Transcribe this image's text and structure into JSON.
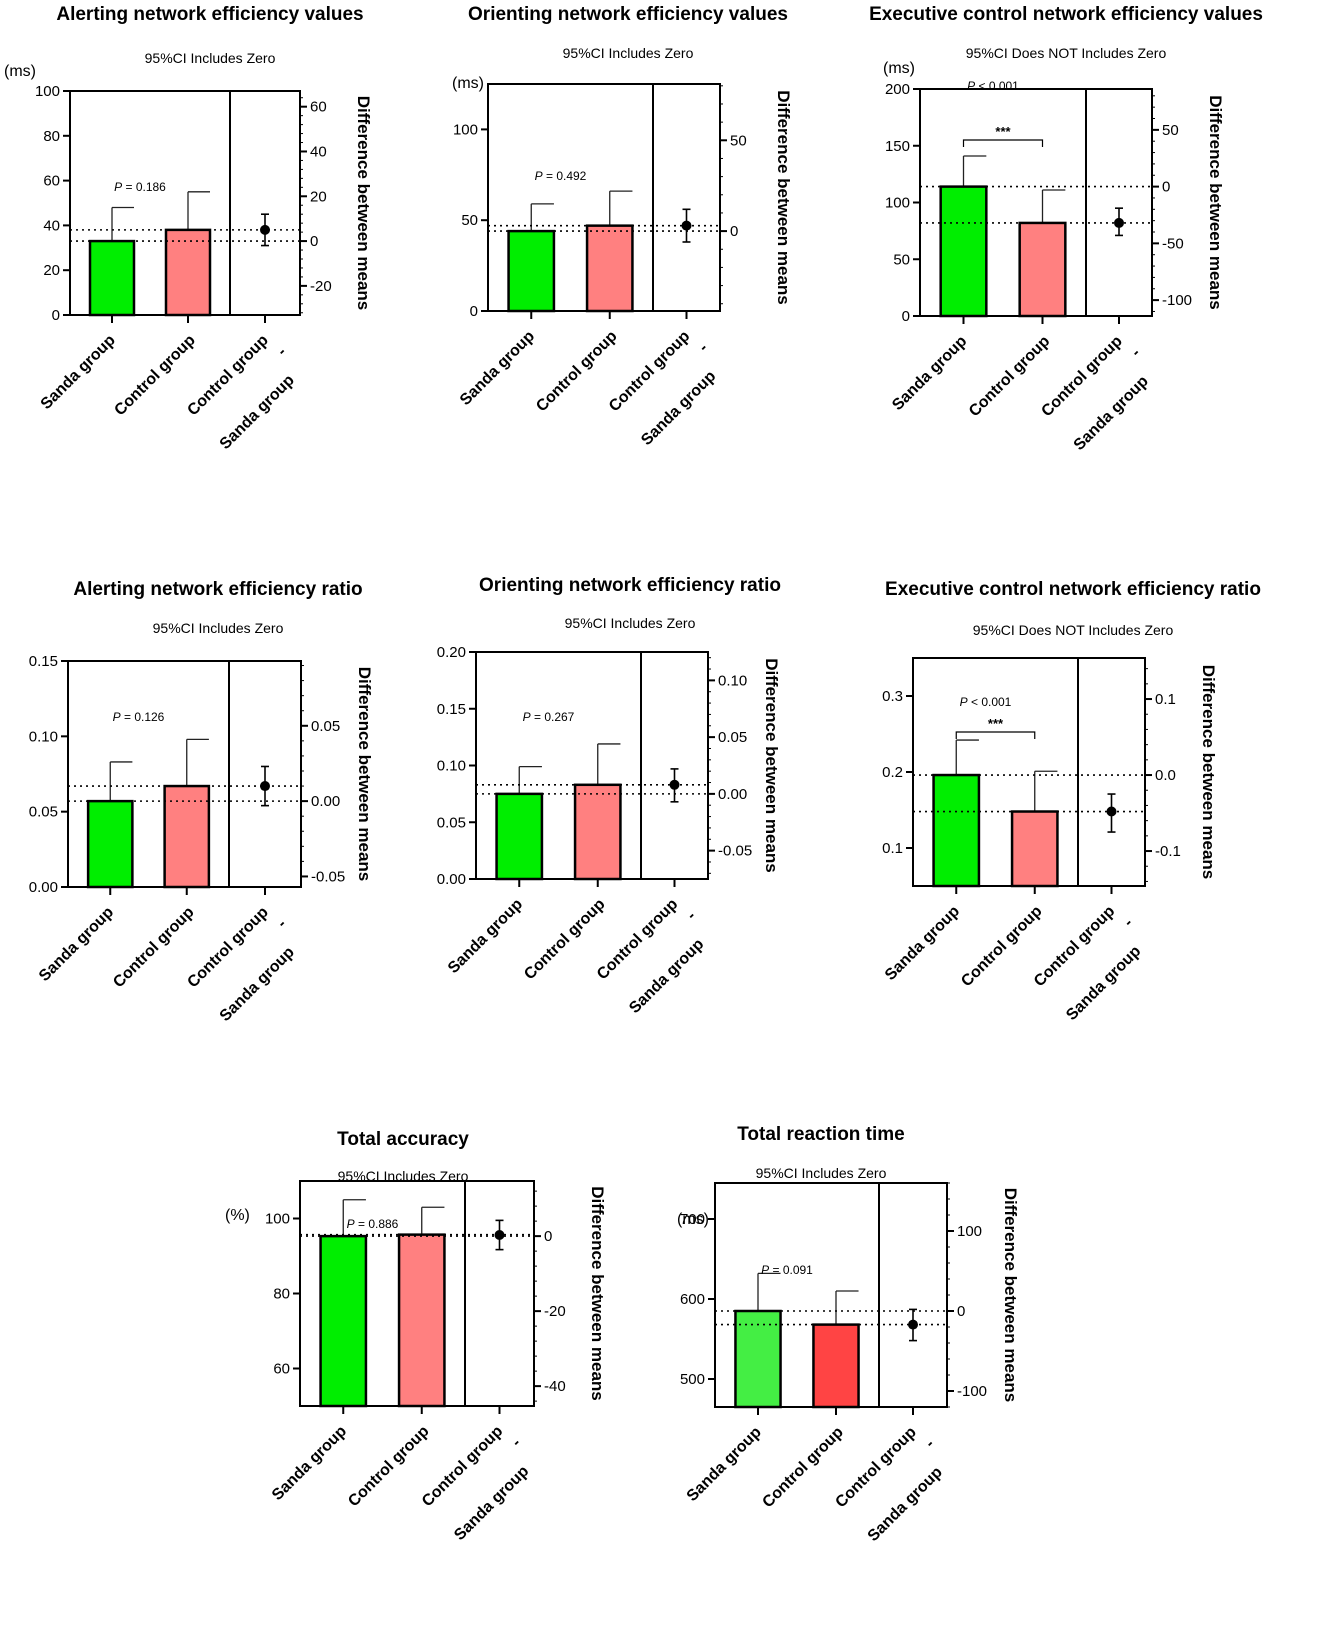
{
  "colors": {
    "sanda": "#00ee00",
    "control": "#ff8080",
    "sanda_rt": "#44ee44",
    "control_rt": "#ff4444",
    "axis": "#000000"
  },
  "chart_data": [
    {
      "type": "bar",
      "title": "Alerting network efficiency values",
      "subtitle": "95%CI Includes Zero",
      "unit": "(ms)",
      "categories": [
        "Sanda group",
        "Control group"
      ],
      "diff_label": [
        "Control group",
        "-",
        "Sanda group"
      ],
      "values": [
        33,
        38
      ],
      "errors_upper": [
        48,
        55
      ],
      "ylim": [
        0,
        100
      ],
      "yticks": [
        0,
        20,
        40,
        60,
        80,
        100
      ],
      "ytick_labels": [
        "0",
        "20",
        "40",
        "60",
        "80",
        "100"
      ],
      "right_ylabel": "Difference between means",
      "right_ticks": [
        -20,
        0,
        20,
        40,
        60
      ],
      "right_tick_labels": [
        "-20",
        "0",
        "20",
        "40",
        "60"
      ],
      "difference": {
        "mean": 5,
        "ci": [
          -2,
          12
        ]
      },
      "p_value": "= 0.186",
      "p_prefix": "P",
      "significance": ""
    },
    {
      "type": "bar",
      "title": "Orienting network efficiency values",
      "subtitle": "95%CI Includes Zero",
      "unit": "(ms)",
      "categories": [
        "Sanda group",
        "Control group"
      ],
      "diff_label": [
        "Control group",
        "-",
        "Sanda group"
      ],
      "values": [
        44,
        47
      ],
      "errors_upper": [
        59,
        66
      ],
      "ylim": [
        0,
        125
      ],
      "yticks": [
        0,
        50,
        100
      ],
      "ytick_labels": [
        "0",
        "50",
        "100"
      ],
      "right_ylabel": "Difference between means",
      "right_ticks": [
        0,
        50
      ],
      "right_tick_labels": [
        "0",
        "50"
      ],
      "difference": {
        "mean": 3,
        "ci": [
          -6,
          12
        ]
      },
      "p_value": "= 0.492",
      "p_prefix": "P",
      "significance": ""
    },
    {
      "type": "bar",
      "title": "Executive control network efficiency values",
      "subtitle": "95%CI Does NOT Includes Zero",
      "unit": "(ms)",
      "categories": [
        "Sanda group",
        "Control group"
      ],
      "diff_label": [
        "Control group",
        "-",
        "Sanda group"
      ],
      "values": [
        114,
        82
      ],
      "errors_upper": [
        141,
        111
      ],
      "ylim": [
        0,
        200
      ],
      "yticks": [
        0,
        50,
        100,
        150,
        200
      ],
      "ytick_labels": [
        "0",
        "50",
        "100",
        "150",
        "200"
      ],
      "right_ylabel": "Difference between means",
      "right_ticks": [
        -100,
        -50,
        0,
        50
      ],
      "right_tick_labels": [
        "-100",
        "-50",
        "0",
        "50"
      ],
      "difference": {
        "mean": -32,
        "ci": [
          -43,
          -19
        ]
      },
      "p_value": "< 0.001",
      "p_prefix": "P",
      "significance": "***"
    },
    {
      "type": "bar",
      "title": "Alerting network efficiency ratio",
      "subtitle": "95%CI Includes Zero",
      "unit": "",
      "categories": [
        "Sanda group",
        "Control group"
      ],
      "diff_label": [
        "Control group",
        "-",
        "Sanda group"
      ],
      "values": [
        0.057,
        0.067
      ],
      "errors_upper": [
        0.083,
        0.098
      ],
      "ylim": [
        0,
        0.15
      ],
      "yticks": [
        0,
        0.05,
        0.1,
        0.15
      ],
      "ytick_labels": [
        "0.00",
        "0.05",
        "0.10",
        "0.15"
      ],
      "right_ylabel": "Difference between means",
      "right_ticks": [
        -0.05,
        0,
        0.05
      ],
      "right_tick_labels": [
        "-0.05",
        "0.00",
        "0.05"
      ],
      "difference": {
        "mean": 0.01,
        "ci": [
          -0.003,
          0.023
        ]
      },
      "p_value": "= 0.126",
      "p_prefix": "P",
      "significance": ""
    },
    {
      "type": "bar",
      "title": "Orienting network efficiency ratio",
      "subtitle": "95%CI Includes Zero",
      "unit": "",
      "categories": [
        "Sanda group",
        "Control group"
      ],
      "diff_label": [
        "Control group",
        "-",
        "Sanda group"
      ],
      "values": [
        0.075,
        0.083
      ],
      "errors_upper": [
        0.099,
        0.119
      ],
      "ylim": [
        0,
        0.2
      ],
      "yticks": [
        0,
        0.05,
        0.1,
        0.15,
        0.2
      ],
      "ytick_labels": [
        "0.00",
        "0.05",
        "0.10",
        "0.15",
        "0.20"
      ],
      "right_ylabel": "Difference between means",
      "right_ticks": [
        -0.05,
        0,
        0.05,
        0.1
      ],
      "right_tick_labels": [
        "-0.05",
        "0.00",
        "0.05",
        "0.10"
      ],
      "difference": {
        "mean": 0.008,
        "ci": [
          -0.007,
          0.022
        ]
      },
      "p_value": "= 0.267",
      "p_prefix": "P",
      "significance": ""
    },
    {
      "type": "bar",
      "title": "Executive control network efficiency ratio",
      "subtitle": "95%CI Does NOT Includes Zero",
      "unit": "",
      "categories": [
        "Sanda group",
        "Control group"
      ],
      "diff_label": [
        "Control group",
        "-",
        "Sanda group"
      ],
      "values": [
        0.196,
        0.148
      ],
      "errors_upper": [
        0.242,
        0.201
      ],
      "ylim": [
        0.05,
        0.35
      ],
      "yticks": [
        0.1,
        0.2,
        0.3
      ],
      "ytick_labels": [
        "0.1",
        "0.2",
        "0.3"
      ],
      "right_ylabel": "Difference between means",
      "right_ticks": [
        -0.1,
        0,
        0.1
      ],
      "right_tick_labels": [
        "-0.1",
        "0.0",
        "0.1"
      ],
      "difference": {
        "mean": -0.048,
        "ci": [
          -0.075,
          -0.025
        ]
      },
      "p_value": "< 0.001",
      "p_prefix": "P",
      "significance": "***"
    },
    {
      "type": "bar",
      "title": "Total accuracy",
      "subtitle": "95%CI Includes Zero",
      "unit": "(%)",
      "categories": [
        "Sanda group",
        "Control group"
      ],
      "diff_label": [
        "Control group",
        "-",
        "Sanda group"
      ],
      "values": [
        95.3,
        95.7
      ],
      "errors_upper": [
        105,
        103
      ],
      "ylim": [
        50,
        110
      ],
      "yticks": [
        60,
        80,
        100
      ],
      "ytick_labels": [
        "60",
        "80",
        "100"
      ],
      "right_ylabel": "Difference between means",
      "right_ticks": [
        -40,
        -20,
        0
      ],
      "right_tick_labels": [
        "-40",
        "-20",
        "0"
      ],
      "difference": {
        "mean": 0.3,
        "ci": [
          -3.6,
          4.2
        ]
      },
      "p_value": "= 0.886",
      "p_prefix": "P",
      "significance": ""
    },
    {
      "type": "bar",
      "title": "Total reaction time",
      "subtitle": "95%CI Includes Zero",
      "unit": "(ms)",
      "categories": [
        "Sanda group",
        "Control group"
      ],
      "diff_label": [
        "Control group",
        "-",
        "Sanda group"
      ],
      "values": [
        585,
        568
      ],
      "errors_upper": [
        632,
        610
      ],
      "ylim": [
        465,
        745
      ],
      "yticks": [
        500,
        600,
        700
      ],
      "ytick_labels": [
        "500",
        "600",
        "700"
      ],
      "right_ylabel": "Difference between means",
      "right_ticks": [
        -100,
        0,
        100
      ],
      "right_tick_labels": [
        "-100",
        "0",
        "100"
      ],
      "difference": {
        "mean": -17,
        "ci": [
          -37,
          2
        ]
      },
      "p_value": "= 0.091",
      "p_prefix": "P",
      "significance": ""
    }
  ]
}
